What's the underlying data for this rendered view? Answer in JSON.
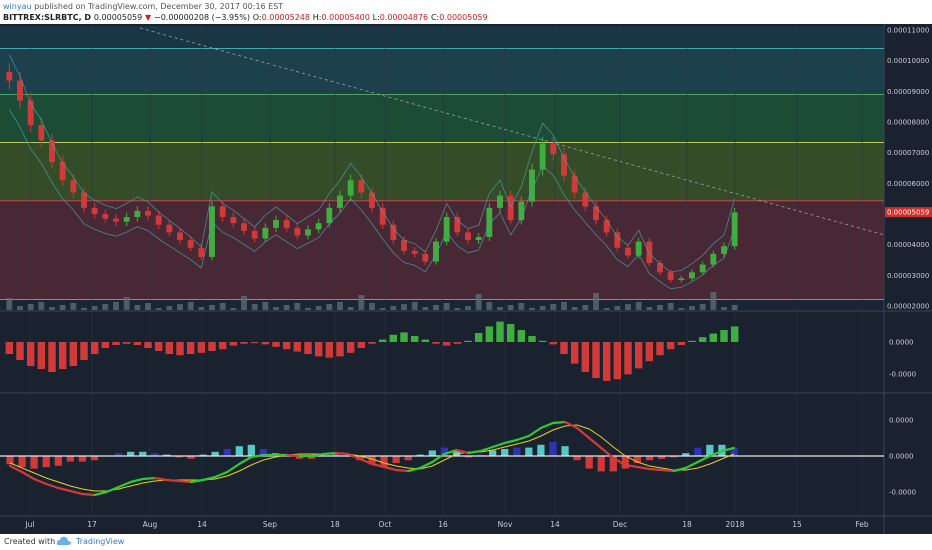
{
  "header": {
    "user": "winyau",
    "published": " published on TradingView.com, December 30, 2017 00:16 EST",
    "symbol": "BITTREX:SLRBTC, D",
    "close_value": "0.00005059",
    "change_arrow": "▼",
    "change": "−0.00000208 (−3.95%)",
    "open_label": "O:",
    "open_value": "0.00005248",
    "high_label": "H:",
    "high_value": "0.00005400",
    "low_label": "L:",
    "low_value": "0.00004876",
    "close_label": "C:",
    "close_value2": "0.00005059"
  },
  "footer": {
    "created_with": "Created with",
    "brand": "TradingView"
  },
  "colors": {
    "background": "#1a2230",
    "bull": "#3fae3f",
    "bear": "#d23a3a",
    "macd_line": "#32c832",
    "signal_line": "#e6d21e",
    "hist_blue": "#2d35b4",
    "hist_cyan": "#56c8c8",
    "band": "#4aa3a3",
    "price_label_bg": "#d32f2f"
  },
  "chart_data": {
    "type": "candlestick",
    "title": "BITTREX:SLRBTC, D",
    "x_ticks": [
      "Jul",
      "17",
      "Aug",
      "14",
      "Sep",
      "18",
      "Oct",
      "16",
      "Nov",
      "14",
      "Dec",
      "18",
      "2018",
      "15",
      "Feb"
    ],
    "price_axis_labels": [
      "0.00011000",
      "0.00010000",
      "0.00009000",
      "0.00008000",
      "0.00007000",
      "0.00006000",
      "0.00004000",
      "0.00003000",
      "0.00002000"
    ],
    "price_ylim": [
      2e-05,
      0.00011
    ],
    "current_price_label": "0.00005059",
    "fib_levels": [
      0.000104,
      8.9e-05,
      7.33e-05,
      5.43e-05,
      2.21e-05
    ],
    "close_prices": [
      9.35e-05,
      8.7e-05,
      7.9e-05,
      7.4e-05,
      6.7e-05,
      6.1e-05,
      5.7e-05,
      5.2e-05,
      5e-05,
      4.85e-05,
      4.75e-05,
      4.9e-05,
      5.1e-05,
      4.95e-05,
      4.65e-05,
      4.4e-05,
      4.15e-05,
      3.9e-05,
      3.6e-05,
      5.25e-05,
      4.9e-05,
      4.7e-05,
      4.45e-05,
      4.2e-05,
      4.55e-05,
      4.8e-05,
      4.55e-05,
      4.3e-05,
      4.5e-05,
      4.7e-05,
      5.2e-05,
      5.6e-05,
      6.1e-05,
      5.7e-05,
      5.2e-05,
      4.65e-05,
      4.15e-05,
      3.8e-05,
      3.7e-05,
      3.45e-05,
      4.1e-05,
      4.9e-05,
      4.4e-05,
      4.15e-05,
      4.25e-05,
      5.2e-05,
      5.6e-05,
      4.8e-05,
      5.4e-05,
      6.45e-05,
      7.3e-05,
      6.95e-05,
      6.25e-05,
      5.7e-05,
      5.25e-05,
      4.8e-05,
      4.4e-05,
      3.9e-05,
      3.65e-05,
      4.1e-05,
      3.4e-05,
      3.1e-05,
      2.85e-05,
      2.9e-05,
      3.1e-05,
      3.35e-05,
      3.7e-05,
      3.95e-05,
      5.05e-05
    ],
    "macd_hist_axis_labels": [
      "0.0000",
      "-0.0000"
    ],
    "macd_axis_labels": [
      "0.0000",
      "0.0000",
      "-0.0000"
    ],
    "histogram1": [
      -2,
      -3,
      -4,
      -4.5,
      -5,
      -4.5,
      -4,
      -3,
      -2,
      -1,
      -0.5,
      -0.3,
      -0.5,
      -1,
      -1.5,
      -2,
      -2.2,
      -2,
      -1.8,
      -1.5,
      -1.2,
      -0.6,
      -0.3,
      -0.2,
      -0.4,
      -0.8,
      -1.2,
      -1.6,
      -2,
      -2.4,
      -2.6,
      -2.4,
      -1.8,
      -1,
      -0.3,
      0.4,
      1.2,
      1.6,
      1.0,
      0.4,
      -0.3,
      -0.6,
      -0.3,
      0.2,
      1.5,
      2.6,
      3.4,
      3.0,
      2.0,
      1.0,
      0.2,
      -0.4,
      -2,
      -3.6,
      -5,
      -6,
      -6.5,
      -6.2,
      -5.4,
      -4.4,
      -3.2,
      -2.2,
      -1.2,
      -0.5,
      0.2,
      0.8,
      1.4,
      2.0,
      2.6
    ],
    "macd": [
      -1.0,
      -1.6,
      -2.3,
      -2.8,
      -3.2,
      -3.5,
      -3.8,
      -3.9,
      -3.6,
      -3.1,
      -2.6,
      -2.3,
      -2.2,
      -2.4,
      -2.5,
      -2.6,
      -2.4,
      -2.1,
      -1.6,
      -0.8,
      -0.1,
      0.1,
      0.1,
      0.1,
      0.0,
      0.0,
      0.2,
      0.3,
      0.2,
      -0.3,
      -0.8,
      -1.1,
      -1.4,
      -1.5,
      -1.2,
      -0.6,
      0.2,
      0.6,
      0.3,
      0.5,
      0.9,
      1.3,
      1.6,
      2.0,
      2.8,
      3.3,
      3.4,
      2.8,
      1.8,
      0.8,
      -0.2,
      -0.9,
      -1.1,
      -1.3,
      -1.4,
      -1.5,
      -1.2,
      -0.6,
      0.0,
      0.5,
      0.8
    ],
    "signal": [
      -0.7,
      -1.2,
      -1.7,
      -2.2,
      -2.6,
      -3.0,
      -3.3,
      -3.5,
      -3.5,
      -3.3,
      -3.0,
      -2.7,
      -2.5,
      -2.4,
      -2.4,
      -2.4,
      -2.4,
      -2.3,
      -2.0,
      -1.5,
      -0.9,
      -0.4,
      -0.1,
      0.1,
      0.2,
      0.2,
      0.2,
      0.2,
      0.2,
      0.0,
      -0.3,
      -0.7,
      -1.0,
      -1.2,
      -1.3,
      -1.0,
      -0.4,
      0.2,
      0.4,
      0.4,
      0.6,
      0.9,
      1.2,
      1.5,
      2.0,
      2.6,
      3.0,
      3.1,
      2.7,
      1.9,
      0.9,
      0.0,
      -0.6,
      -1.0,
      -1.2,
      -1.4,
      -1.4,
      -1.2,
      -0.8,
      -0.3,
      0.2
    ],
    "histogram2": [
      -0.6,
      -0.8,
      -0.9,
      -0.8,
      -0.7,
      -0.4,
      -0.4,
      -0.3,
      0.0,
      0.2,
      0.3,
      0.3,
      0.2,
      0.1,
      -0.1,
      -0.2,
      0.1,
      0.3,
      0.5,
      0.7,
      0.8,
      0.5,
      0.2,
      0.0,
      -0.2,
      -0.2,
      0.0,
      0.1,
      0.0,
      -0.3,
      -0.6,
      -0.8,
      -0.5,
      -0.3,
      0.1,
      0.4,
      0.6,
      0.4,
      -0.1,
      0.1,
      0.4,
      0.5,
      0.6,
      0.6,
      0.8,
      1.0,
      0.7,
      -0.3,
      -0.9,
      -1.1,
      -1.1,
      -0.9,
      -0.5,
      -0.3,
      -0.2,
      -0.1,
      0.2,
      0.6,
      0.8,
      0.8,
      0.6
    ]
  }
}
